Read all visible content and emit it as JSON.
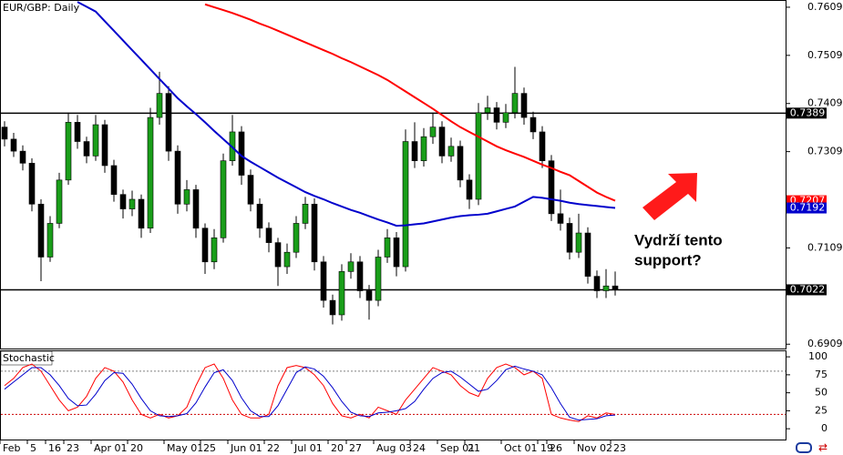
{
  "chart_data": {
    "type": "candlestick",
    "title": "EUR/GBP: Daily",
    "up_color": "#1a9e1a",
    "down_color": "#000000",
    "ylim": [
      0.69,
      0.7624
    ],
    "yticks": [
      0.6909,
      0.7109,
      0.7309,
      0.7409,
      0.7509,
      0.7609
    ],
    "levels": [
      0.7389,
      0.7022
    ],
    "level_color": "#000000",
    "ohlc": [
      [
        0.736,
        0.7372,
        0.732,
        0.7335
      ],
      [
        0.7335,
        0.7348,
        0.7298,
        0.731
      ],
      [
        0.731,
        0.7322,
        0.727,
        0.7285
      ],
      [
        0.7285,
        0.7295,
        0.7185,
        0.72
      ],
      [
        0.72,
        0.721,
        0.704,
        0.709
      ],
      [
        0.709,
        0.7175,
        0.708,
        0.716
      ],
      [
        0.716,
        0.7265,
        0.715,
        0.725
      ],
      [
        0.725,
        0.739,
        0.724,
        0.737
      ],
      [
        0.737,
        0.7385,
        0.7315,
        0.733
      ],
      [
        0.733,
        0.734,
        0.7285,
        0.73
      ],
      [
        0.73,
        0.7385,
        0.729,
        0.7365
      ],
      [
        0.7365,
        0.7375,
        0.7265,
        0.728
      ],
      [
        0.728,
        0.7292,
        0.7205,
        0.722
      ],
      [
        0.722,
        0.723,
        0.717,
        0.719
      ],
      [
        0.719,
        0.7228,
        0.7175,
        0.721
      ],
      [
        0.721,
        0.722,
        0.713,
        0.715
      ],
      [
        0.715,
        0.74,
        0.714,
        0.738
      ],
      [
        0.738,
        0.7475,
        0.7365,
        0.743
      ],
      [
        0.743,
        0.7445,
        0.729,
        0.731
      ],
      [
        0.731,
        0.7322,
        0.718,
        0.72
      ],
      [
        0.72,
        0.725,
        0.7185,
        0.723
      ],
      [
        0.723,
        0.724,
        0.713,
        0.715
      ],
      [
        0.715,
        0.716,
        0.7055,
        0.708
      ],
      [
        0.708,
        0.7148,
        0.7065,
        0.713
      ],
      [
        0.713,
        0.7305,
        0.712,
        0.729
      ],
      [
        0.729,
        0.7385,
        0.728,
        0.735
      ],
      [
        0.735,
        0.7362,
        0.724,
        0.726
      ],
      [
        0.726,
        0.7272,
        0.7185,
        0.72
      ],
      [
        0.72,
        0.7212,
        0.713,
        0.715
      ],
      [
        0.715,
        0.7162,
        0.71,
        0.712
      ],
      [
        0.712,
        0.713,
        0.703,
        0.707
      ],
      [
        0.707,
        0.7118,
        0.7055,
        0.71
      ],
      [
        0.71,
        0.7175,
        0.7088,
        0.716
      ],
      [
        0.716,
        0.7215,
        0.7148,
        0.72
      ],
      [
        0.72,
        0.7212,
        0.7062,
        0.708
      ],
      [
        0.708,
        0.7092,
        0.6985,
        0.7
      ],
      [
        0.7,
        0.7012,
        0.695,
        0.697
      ],
      [
        0.697,
        0.7075,
        0.6958,
        0.706
      ],
      [
        0.706,
        0.7098,
        0.7045,
        0.708
      ],
      [
        0.708,
        0.7092,
        0.7005,
        0.702
      ],
      [
        0.702,
        0.7032,
        0.696,
        0.7
      ],
      [
        0.7,
        0.7105,
        0.6988,
        0.709
      ],
      [
        0.709,
        0.7148,
        0.7078,
        0.713
      ],
      [
        0.713,
        0.7142,
        0.705,
        0.707
      ],
      [
        0.707,
        0.7355,
        0.706,
        0.733
      ],
      [
        0.733,
        0.737,
        0.7275,
        0.729
      ],
      [
        0.729,
        0.7358,
        0.7278,
        0.734
      ],
      [
        0.734,
        0.739,
        0.7325,
        0.736
      ],
      [
        0.736,
        0.7372,
        0.7285,
        0.73
      ],
      [
        0.73,
        0.7338,
        0.7288,
        0.732
      ],
      [
        0.732,
        0.7332,
        0.7235,
        0.725
      ],
      [
        0.725,
        0.7262,
        0.719,
        0.721
      ],
      [
        0.721,
        0.741,
        0.7198,
        0.739
      ],
      [
        0.739,
        0.7425,
        0.7375,
        0.74
      ],
      [
        0.74,
        0.7412,
        0.7355,
        0.737
      ],
      [
        0.737,
        0.7408,
        0.7358,
        0.739
      ],
      [
        0.739,
        0.7485,
        0.7378,
        0.743
      ],
      [
        0.743,
        0.7442,
        0.7365,
        0.738
      ],
      [
        0.738,
        0.7392,
        0.7335,
        0.735
      ],
      [
        0.735,
        0.7362,
        0.7275,
        0.729
      ],
      [
        0.729,
        0.7302,
        0.7165,
        0.718
      ],
      [
        0.718,
        0.723,
        0.7145,
        0.716
      ],
      [
        0.716,
        0.7172,
        0.7085,
        0.71
      ],
      [
        0.71,
        0.718,
        0.7088,
        0.714
      ],
      [
        0.714,
        0.7152,
        0.7035,
        0.705
      ],
      [
        0.705,
        0.7062,
        0.7005,
        0.702
      ],
      [
        0.702,
        0.7065,
        0.7005,
        0.703
      ],
      [
        0.703,
        0.706,
        0.701,
        0.7022
      ]
    ],
    "series": [
      {
        "color": "#ff0000",
        "values": [
          null,
          null,
          null,
          null,
          null,
          null,
          null,
          null,
          null,
          null,
          null,
          null,
          null,
          null,
          null,
          null,
          null,
          null,
          null,
          null,
          null,
          null,
          0.7615,
          0.7609,
          0.7603,
          0.7597,
          0.759,
          0.7583,
          0.7575,
          0.7568,
          0.756,
          0.7552,
          0.7544,
          0.7536,
          0.7528,
          0.752,
          0.7512,
          0.7503,
          0.7495,
          0.7486,
          0.7477,
          0.7468,
          0.7458,
          0.7446,
          0.7434,
          0.7422,
          0.741,
          0.7398,
          0.7385,
          0.7372,
          0.736,
          0.735,
          0.734,
          0.733,
          0.732,
          0.7312,
          0.7305,
          0.7298,
          0.729,
          0.7282,
          0.7275,
          0.7267,
          0.726,
          0.7248,
          0.7236,
          0.7224,
          0.7215,
          0.7207
        ]
      },
      {
        "color": "#0000cc",
        "values": [
          null,
          null,
          null,
          null,
          null,
          null,
          null,
          null,
          0.762,
          0.761,
          0.76,
          0.758,
          0.756,
          0.754,
          0.752,
          0.75,
          0.748,
          0.746,
          0.744,
          0.742,
          0.7403,
          0.7387,
          0.737,
          0.7352,
          0.7335,
          0.7318,
          0.73,
          0.7288,
          0.7277,
          0.7266,
          0.7255,
          0.7245,
          0.7235,
          0.7225,
          0.7217,
          0.721,
          0.7202,
          0.7195,
          0.7188,
          0.7182,
          0.7175,
          0.7168,
          0.7162,
          0.7155,
          0.7156,
          0.7158,
          0.716,
          0.7164,
          0.7168,
          0.7172,
          0.7175,
          0.7177,
          0.7178,
          0.718,
          0.7185,
          0.719,
          0.7195,
          0.7205,
          0.7215,
          0.7213,
          0.721,
          0.7207,
          0.7203,
          0.72,
          0.7198,
          0.7196,
          0.7194,
          0.7192
        ]
      }
    ],
    "xticks": [
      {
        "value": 0,
        "label": "Feb"
      },
      {
        "value": 3,
        "label": "5"
      },
      {
        "value": 5,
        "label": "16"
      },
      {
        "value": 7,
        "label": "23"
      },
      {
        "value": 10,
        "label": "Apr 01"
      },
      {
        "value": 14,
        "label": "20"
      },
      {
        "value": 18,
        "label": "May 01"
      },
      {
        "value": 22,
        "label": "25"
      },
      {
        "value": 25,
        "label": "Jun 01"
      },
      {
        "value": 29,
        "label": "22"
      },
      {
        "value": 32,
        "label": "Jul 01"
      },
      {
        "value": 36,
        "label": "20"
      },
      {
        "value": 38,
        "label": "27"
      },
      {
        "value": 41,
        "label": "Aug 03"
      },
      {
        "value": 45,
        "label": "24"
      },
      {
        "value": 48,
        "label": "Sep 01"
      },
      {
        "value": 51,
        "label": "21"
      },
      {
        "value": 55,
        "label": "Oct 01"
      },
      {
        "value": 59,
        "label": "19"
      },
      {
        "value": 60,
        "label": "26"
      },
      {
        "value": 63,
        "label": "Nov 02"
      },
      {
        "value": 67,
        "label": "23"
      }
    ],
    "annotation": [
      "Vydrží tento",
      "support?"
    ],
    "annotation_color": "#ff0000",
    "indicator": {
      "title": "Stochastic",
      "ylim": [
        -15,
        109
      ],
      "yticks": [
        0,
        25,
        50,
        75,
        100
      ],
      "levels": [
        80,
        20
      ],
      "level_colors": [
        "#808080",
        "#cc0000"
      ],
      "series": [
        {
          "color": "#ff0000",
          "values": [
            60,
            70,
            85,
            90,
            80,
            60,
            40,
            25,
            30,
            45,
            70,
            85,
            80,
            65,
            40,
            20,
            15,
            20,
            15,
            18,
            30,
            60,
            85,
            90,
            70,
            40,
            20,
            15,
            15,
            20,
            60,
            85,
            88,
            85,
            75,
            60,
            35,
            18,
            15,
            20,
            15,
            30,
            25,
            20,
            40,
            55,
            70,
            85,
            80,
            75,
            60,
            50,
            45,
            70,
            85,
            90,
            85,
            75,
            80,
            70,
            20,
            15,
            12,
            10,
            18,
            15,
            22,
            20
          ]
        },
        {
          "color": "#0000cc",
          "values": [
            55,
            65,
            75,
            85,
            85,
            75,
            60,
            42,
            32,
            33,
            48,
            67,
            78,
            77,
            62,
            42,
            25,
            18,
            17,
            18,
            21,
            36,
            58,
            78,
            82,
            67,
            43,
            25,
            17,
            17,
            32,
            55,
            78,
            86,
            83,
            73,
            57,
            38,
            23,
            18,
            17,
            22,
            23,
            25,
            28,
            38,
            55,
            70,
            78,
            80,
            72,
            62,
            52,
            55,
            67,
            82,
            87,
            83,
            80,
            75,
            57,
            35,
            16,
            12,
            13,
            14,
            18,
            19
          ]
        }
      ]
    }
  }
}
